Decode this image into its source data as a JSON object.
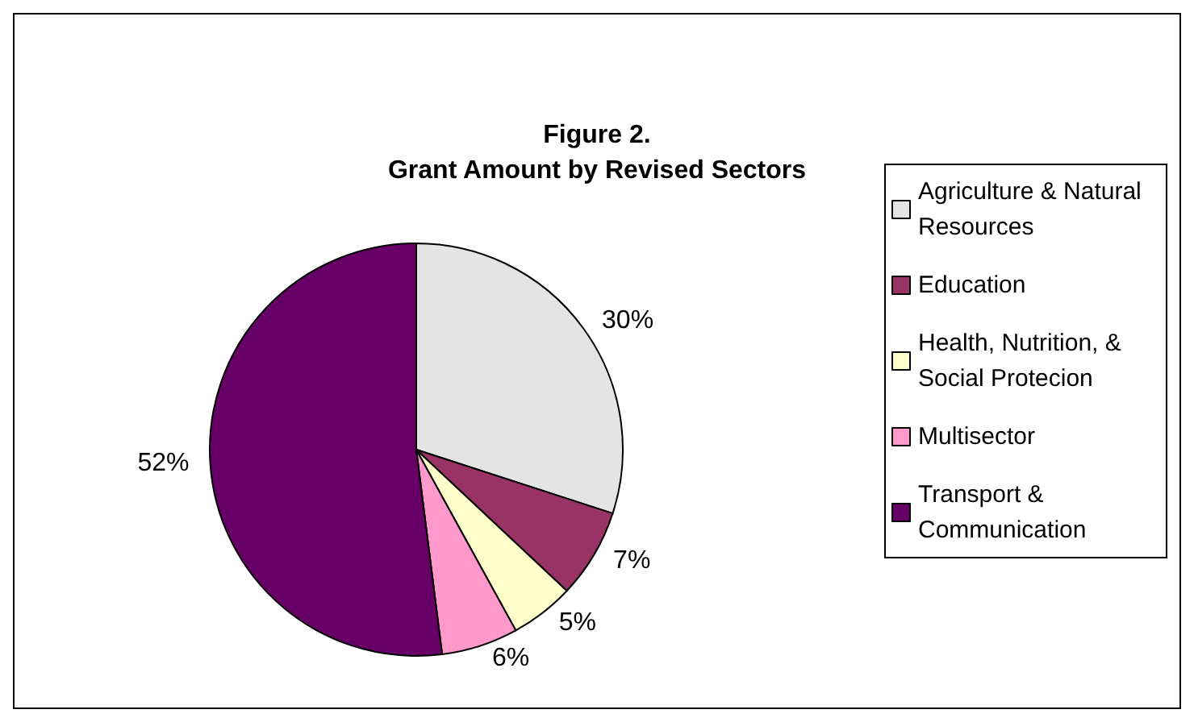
{
  "chart_data": {
    "type": "pie",
    "title": "Figure 2.",
    "subtitle": "Grant Amount by Revised Sectors",
    "categories": [
      "Agriculture & Natural Resources",
      "Education",
      "Health, Nutrition, & Social Protecion",
      "Multisector",
      "Transport & Communication"
    ],
    "values": [
      30,
      7,
      5,
      6,
      52
    ],
    "colors": [
      "#e4e4e4",
      "#993366",
      "#ffffcc",
      "#ff99cc",
      "#660066"
    ],
    "value_labels": [
      "30%",
      "7%",
      "5%",
      "6%",
      "52%"
    ],
    "legend": "right"
  }
}
